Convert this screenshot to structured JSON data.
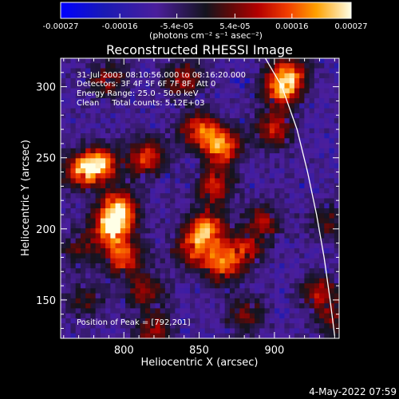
{
  "chart_data": {
    "type": "heatmap",
    "title": "Reconstructed RHESSI Image",
    "xlabel": "Heliocentric X (arcsec)",
    "ylabel": "Heliocentric Y (arcsec)",
    "xlim": [
      758,
      943
    ],
    "ylim": [
      123,
      320
    ],
    "xticks": [
      {
        "value": 800,
        "label": "800"
      },
      {
        "value": 850,
        "label": "850"
      },
      {
        "value": 900,
        "label": "900"
      }
    ],
    "yticks": [
      {
        "value": 150,
        "label": "150"
      },
      {
        "value": 200,
        "label": "200"
      },
      {
        "value": 250,
        "label": "250"
      },
      {
        "value": 300,
        "label": "300"
      }
    ],
    "colorbar": {
      "range": [
        -0.00027,
        0.00027
      ],
      "ticks": [
        {
          "value": -0.00027,
          "label": "-0.00027"
        },
        {
          "value": -0.00016,
          "label": "-0.00016"
        },
        {
          "value": -5.4e-05,
          "label": "-5.4e-05"
        },
        {
          "value": 5.4e-05,
          "label": "5.4e-05"
        },
        {
          "value": 0.00016,
          "label": "0.00016"
        },
        {
          "value": 0.00027,
          "label": "0.00027"
        }
      ],
      "unit_label": "(photons cm⁻² s⁻¹ asec⁻²)"
    },
    "annotations": {
      "time_range": "31-Jul-2003 08:10:56.000 to 08:16:20.000",
      "detectors": "Detectors: 3F 4F 5F 6F 7F 8F, Att 0",
      "energy_range": "Energy Range: 25.0 - 50.0 keV",
      "method_counts": "Clean     Total counts: 5.12E+03",
      "peak": "Position of Peak = [792,201]"
    },
    "limb_curve": [
      [
        894,
        320
      ],
      [
        905,
        300
      ],
      [
        915,
        270
      ],
      [
        922,
        240
      ],
      [
        928,
        210
      ],
      [
        933,
        180
      ],
      [
        937,
        150
      ],
      [
        940,
        125
      ]
    ],
    "hotspots": [
      {
        "x": 792,
        "y": 201,
        "amp": 1.0
      },
      {
        "x": 783,
        "y": 245,
        "amp": 0.95
      },
      {
        "x": 797,
        "y": 215,
        "amp": 0.8
      },
      {
        "x": 800,
        "y": 180,
        "amp": 0.75
      },
      {
        "x": 815,
        "y": 250,
        "amp": 0.7
      },
      {
        "x": 770,
        "y": 240,
        "amp": 0.6
      },
      {
        "x": 850,
        "y": 270,
        "amp": 0.7
      },
      {
        "x": 865,
        "y": 258,
        "amp": 0.85
      },
      {
        "x": 860,
        "y": 230,
        "amp": 0.65
      },
      {
        "x": 855,
        "y": 200,
        "amp": 0.85
      },
      {
        "x": 865,
        "y": 175,
        "amp": 0.75
      },
      {
        "x": 845,
        "y": 185,
        "amp": 0.6
      },
      {
        "x": 880,
        "y": 185,
        "amp": 0.55
      },
      {
        "x": 905,
        "y": 298,
        "amp": 0.8
      },
      {
        "x": 900,
        "y": 270,
        "amp": 0.6
      },
      {
        "x": 910,
        "y": 310,
        "amp": 0.6
      },
      {
        "x": 840,
        "y": 305,
        "amp": 0.55
      },
      {
        "x": 790,
        "y": 305,
        "amp": 0.5
      },
      {
        "x": 815,
        "y": 155,
        "amp": 0.5
      },
      {
        "x": 820,
        "y": 128,
        "amp": 0.5
      },
      {
        "x": 880,
        "y": 140,
        "amp": 0.45
      },
      {
        "x": 893,
        "y": 205,
        "amp": 0.5
      },
      {
        "x": 930,
        "y": 155,
        "amp": 0.55
      },
      {
        "x": 940,
        "y": 135,
        "amp": 0.4
      },
      {
        "x": 770,
        "y": 185,
        "amp": 0.4
      },
      {
        "x": 775,
        "y": 150,
        "amp": 0.35
      },
      {
        "x": 935,
        "y": 205,
        "amp": 0.35
      }
    ]
  },
  "timestamp": "4-May-2022 07:59"
}
